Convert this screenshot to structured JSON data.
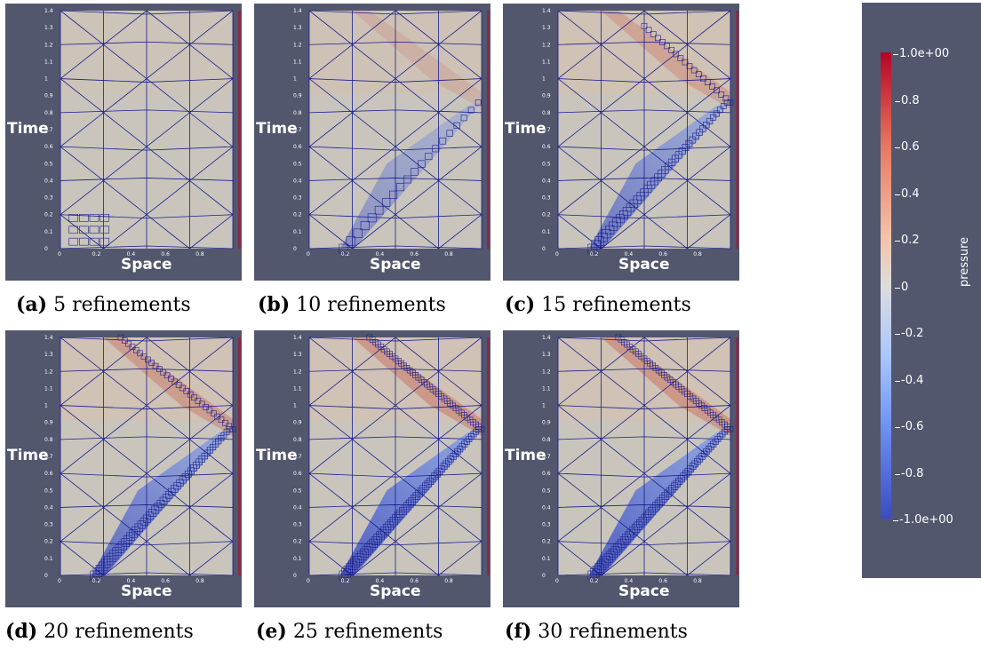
{
  "panels": [
    {
      "id": "a",
      "letter": "(a)",
      "caption": "5 refinements"
    },
    {
      "id": "b",
      "letter": "(b)",
      "caption": "10 refinements"
    },
    {
      "id": "c",
      "letter": "(c)",
      "caption": "15 refinements"
    },
    {
      "id": "d",
      "letter": "(d)",
      "caption": "20 refinements"
    },
    {
      "id": "e",
      "letter": "(e)",
      "caption": "25 refinements"
    },
    {
      "id": "f",
      "letter": "(f)",
      "caption": "30 refinements"
    }
  ],
  "axis": {
    "time_label": "Time",
    "space_label": "Space"
  },
  "colorbar": {
    "title": "pressure",
    "ticks": [
      "1.0e+00",
      "0.8",
      "0.6",
      "0.4",
      "0.2",
      "0",
      "-0.2",
      "-0.4",
      "-0.6",
      "-0.8",
      "-1.0e+00"
    ],
    "colors": {
      "max": "#b40426",
      "mid": "#dddcdc",
      "min": "#3b4cc0",
      "background": "#52576e",
      "mesh": "#1a1f8c"
    }
  }
}
